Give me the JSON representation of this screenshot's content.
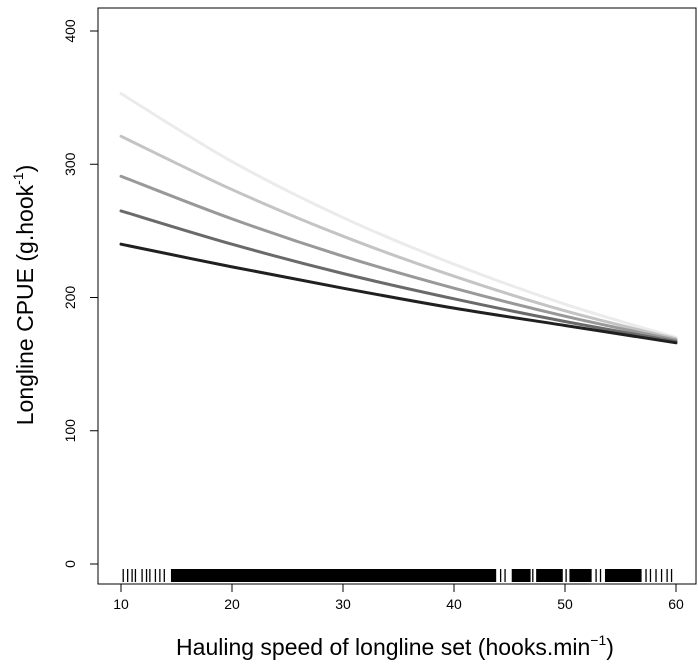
{
  "chart_data": {
    "type": "line",
    "xlabel": {
      "main": "Hauling speed of longline set (hooks.min",
      "sup": "−1",
      "close": ")"
    },
    "ylabel": {
      "main": "Longline CPUE (g.hook",
      "sup": "-1",
      "close": ")"
    },
    "xlim": [
      10,
      60
    ],
    "ylim": [
      0,
      400
    ],
    "x_ticks": [
      10,
      20,
      30,
      40,
      50,
      60
    ],
    "y_ticks": [
      0,
      100,
      200,
      300,
      400
    ],
    "grid": false,
    "legend": "none",
    "series": [
      {
        "color": "#ebebeb",
        "x": [
          10,
          20,
          30,
          40,
          50,
          60
        ],
        "values": [
          353,
          302,
          260,
          225,
          195,
          170
        ]
      },
      {
        "color": "#c4c4c4",
        "x": [
          10,
          20,
          30,
          40,
          50,
          60
        ],
        "values": [
          321,
          281,
          246,
          216,
          190,
          169
        ]
      },
      {
        "color": "#999999",
        "x": [
          10,
          20,
          30,
          40,
          50,
          60
        ],
        "values": [
          291,
          259,
          231,
          207,
          186,
          168
        ]
      },
      {
        "color": "#6a6a6a",
        "x": [
          10,
          20,
          30,
          40,
          50,
          60
        ],
        "values": [
          265,
          240,
          218,
          199,
          182,
          167
        ]
      },
      {
        "color": "#202020",
        "x": [
          10,
          20,
          30,
          40,
          50,
          60
        ],
        "values": [
          240,
          223,
          207,
          192,
          179,
          166
        ]
      }
    ],
    "rug": {
      "dense_ranges": [
        [
          14.5,
          43.8
        ],
        [
          45.2,
          46.9
        ],
        [
          47.4,
          49.8
        ],
        [
          50.4,
          52.4
        ],
        [
          53.6,
          56.9
        ]
      ],
      "points": [
        10.2,
        10.6,
        11.0,
        11.3,
        11.9,
        12.3,
        12.6,
        13.1,
        13.5,
        13.9,
        44.2,
        44.6,
        47.1,
        50.1,
        52.8,
        53.2,
        57.3,
        57.7,
        58.2,
        58.7,
        59.2,
        59.6
      ]
    }
  }
}
